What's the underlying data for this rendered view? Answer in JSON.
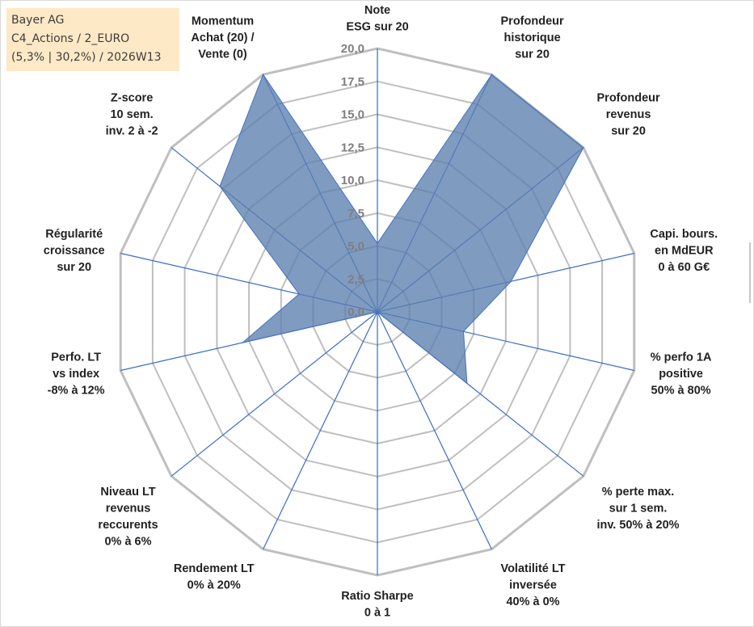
{
  "info": {
    "line1": "Bayer AG",
    "line2": "C4_Actions / 2_EURO",
    "line3": "(5,3% | 30,2%) / 2026W13"
  },
  "chart_data": {
    "type": "radar",
    "title": "",
    "rmin": 0,
    "rmax": 20,
    "tick_labels": [
      "0,0",
      "2,5",
      "5,0",
      "7,5",
      "10,0",
      "12,5",
      "15,0",
      "17,5",
      "20,0"
    ],
    "grid": true,
    "axes": [
      {
        "label": [
          "Note",
          "ESG sur 20"
        ]
      },
      {
        "label": [
          "Profondeur",
          "historique",
          "sur 20"
        ]
      },
      {
        "label": [
          "Profondeur",
          "revenus",
          "sur 20"
        ]
      },
      {
        "label": [
          "Capi. bours.",
          "en MdEUR",
          "0 à 60 G€"
        ]
      },
      {
        "label": [
          "% perfo 1A",
          "positive",
          "50% à 80%"
        ]
      },
      {
        "label": [
          "% perte max.",
          "sur 1 sem.",
          "inv. 50% à 20%"
        ]
      },
      {
        "label": [
          "Volatilité LT",
          "inversée",
          "40% à 0%"
        ]
      },
      {
        "label": [
          "Ratio Sharpe",
          "0 à 1"
        ]
      },
      {
        "label": [
          "Rendement LT",
          "0% à 20%"
        ]
      },
      {
        "label": [
          "Niveau LT",
          "revenus",
          "reccurents",
          "0% à 6%"
        ]
      },
      {
        "label": [
          "Perfo. LT",
          "vs index",
          "-8% à 12%"
        ]
      },
      {
        "label": [
          "Régularité",
          "croissance",
          "sur 20"
        ]
      },
      {
        "label": [
          "Z-score",
          "10 sem.",
          "inv. 2 à -2"
        ]
      },
      {
        "label": [
          "Momentum",
          "Achat (20) /",
          "Vente (0)"
        ]
      }
    ],
    "series": [
      {
        "values": [
          5.2,
          20,
          20,
          10.4,
          6.7,
          8.7,
          0,
          0,
          0,
          0,
          10.5,
          6.1,
          15.3,
          20
        ],
        "fill": "#5b7fae",
        "fill_opacity": 0.78,
        "stroke": "#4472c4"
      }
    ],
    "colors": {
      "grid": "#bfbfbf",
      "spokes": "#3a6cc8",
      "tick_text": "#7f7f7f",
      "info_bg": "#fde9c6"
    }
  }
}
